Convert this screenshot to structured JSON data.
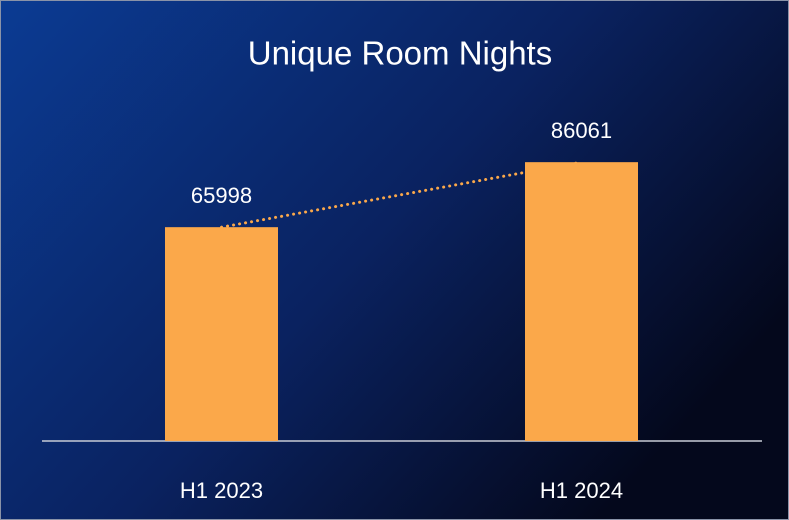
{
  "chart_data": {
    "type": "bar",
    "title": "Unique Room Nights",
    "categories": [
      "H1 2023",
      "H1 2024"
    ],
    "values": [
      65998,
      86061
    ],
    "color": "#fba84a",
    "ylim": [
      0,
      100000
    ],
    "trendline": true
  }
}
